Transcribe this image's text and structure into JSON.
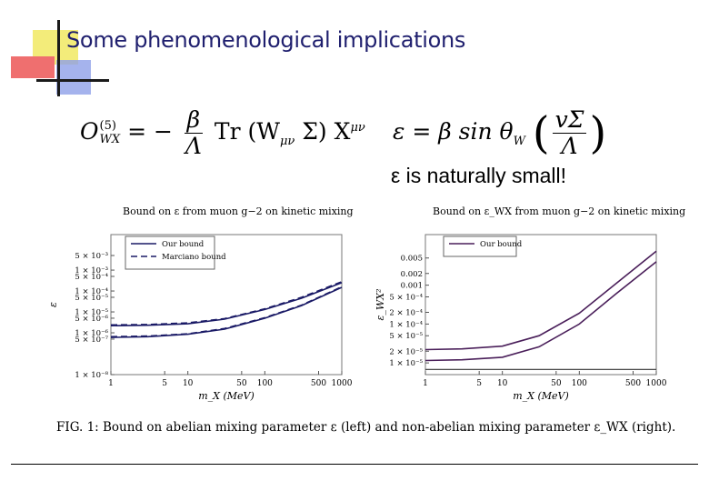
{
  "slide": {
    "title": "Some phenomenological implications",
    "note": "ε is naturally small!",
    "caption": "FIG. 1: Bound on abelian mixing parameter ε (left) and non-abelian mixing parameter ε_WX (right)."
  },
  "equations": {
    "operator": {
      "lhs_symbol": "O",
      "lhs_superscript": "(5)",
      "lhs_subscript": "WX",
      "equals": "= −",
      "frac_num": "β",
      "frac_den": "Λ",
      "trace": "Tr",
      "body": "(W",
      "body_sub": "μν",
      "body_tail": "Σ) X",
      "body_sup": "μν"
    },
    "epsilon": {
      "lhs": "ε = β sin θ",
      "lhs_sub": "W",
      "frac_num": "vΣ",
      "frac_den": "Λ"
    }
  },
  "colors": {
    "title": "#1f1f6e",
    "curve_right": "#4a1f5a",
    "curve_left": "#1a1a66",
    "deco_blue": "#5b6bd6",
    "deco_yellow": "#f3ec7a",
    "deco_red": "#ef6f6f"
  },
  "chart_data": [
    {
      "type": "line",
      "title": "Bound on ε from muon g−2 on kinetic mixing",
      "xlabel": "m_X (MeV)",
      "ylabel": "ε",
      "xscale": "log",
      "yscale": "log",
      "xlim": [
        1,
        1000
      ],
      "ylim": [
        1e-08,
        0.05
      ],
      "x_ticks": [
        "1",
        "5",
        "10",
        "50",
        "100",
        "500",
        "1000"
      ],
      "x_tick_values": [
        1,
        5,
        10,
        50,
        100,
        500,
        1000
      ],
      "y_ticks": [
        "5 × 10⁻³",
        "1 × 10⁻³",
        "5 × 10⁻⁴",
        "1 × 10⁻⁴",
        "5 × 10⁻⁵",
        "1 × 10⁻⁵",
        "5 × 10⁻⁶",
        "1 × 10⁻⁶",
        "5 × 10⁻⁷",
        "1 × 10⁻⁸"
      ],
      "y_tick_values": [
        0.005,
        0.001,
        0.0005,
        0.0001,
        5e-05,
        1e-05,
        5e-06,
        1e-06,
        5e-07,
        1e-08
      ],
      "legend": [
        "Our bound",
        "Marciano bound"
      ],
      "legend_position": "top-left",
      "series": [
        {
          "name": "Our bound",
          "style": "solid",
          "x": [
            1,
            3,
            10,
            30,
            100,
            300,
            1000
          ],
          "y": [
            2.2e-06,
            2.3e-06,
            2.7e-06,
            4.5e-06,
            1.3e-05,
            4.5e-05,
            0.00025
          ]
        },
        {
          "name": "Our bound",
          "style": "solid",
          "x": [
            1,
            3,
            10,
            30,
            100,
            300,
            1000
          ],
          "y": [
            6e-07,
            6.5e-07,
            8.5e-07,
            1.5e-06,
            5e-06,
            2e-05,
            0.00015
          ]
        },
        {
          "name": "Marciano bound",
          "style": "dashed",
          "x": [
            1,
            3,
            10,
            30,
            100,
            300,
            1000
          ],
          "y": [
            2.4e-06,
            2.5e-06,
            3e-06,
            4.8e-06,
            1.4e-05,
            5e-05,
            0.00028
          ]
        },
        {
          "name": "Marciano bound",
          "style": "dashed",
          "x": [
            1,
            3,
            10,
            30,
            100,
            300,
            1000
          ],
          "y": [
            6.5e-07,
            7e-07,
            9e-07,
            1.6e-06,
            5.3e-06,
            2.1e-05,
            0.00016
          ]
        }
      ]
    },
    {
      "type": "line",
      "title": "Bound on ε_WX from muon g−2 on kinetic mixing",
      "xlabel": "m_X (MeV)",
      "ylabel": "ε_WX²",
      "xscale": "log",
      "yscale": "log",
      "xlim": [
        1,
        1000
      ],
      "ylim": [
        5e-06,
        0.02
      ],
      "x_ticks": [
        "1",
        "5",
        "10",
        "50",
        "100",
        "500",
        "1000"
      ],
      "x_tick_values": [
        1,
        5,
        10,
        50,
        100,
        500,
        1000
      ],
      "y_ticks": [
        "0.005",
        "0.002",
        "0.001",
        "5 × 10⁻⁴",
        "2 × 10⁻⁴",
        "1 × 10⁻⁴",
        "5 × 10⁻⁵",
        "2 × 10⁻⁵",
        "1 × 10⁻⁵"
      ],
      "y_tick_values": [
        0.005,
        0.002,
        0.001,
        0.0005,
        0.0002,
        0.0001,
        5e-05,
        2e-05,
        1e-05
      ],
      "legend": [
        "Our bound"
      ],
      "legend_position": "top-left",
      "series": [
        {
          "name": "Our bound",
          "style": "solid",
          "x": [
            1,
            3,
            10,
            30,
            100,
            300,
            1000
          ],
          "y": [
            2.2e-05,
            2.3e-05,
            2.7e-05,
            5e-05,
            0.00019,
            0.0011,
            0.0075
          ]
        },
        {
          "name": "Our bound",
          "style": "solid",
          "x": [
            1,
            3,
            10,
            30,
            100,
            300,
            1000
          ],
          "y": [
            1.15e-05,
            1.2e-05,
            1.4e-05,
            2.6e-05,
            0.0001,
            0.0006,
            0.004
          ]
        },
        {
          "name": "",
          "style": "solid",
          "x": [
            1,
            1000
          ],
          "y": [
            6.8e-06,
            6.8e-06
          ]
        }
      ]
    }
  ]
}
